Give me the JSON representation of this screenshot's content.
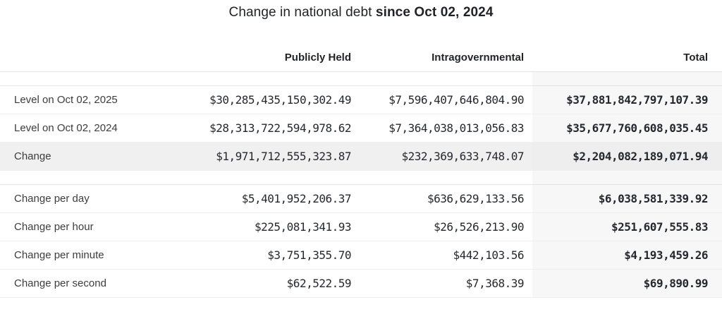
{
  "title": {
    "regular": "Change in national debt ",
    "bold": "since Oct 02, 2024"
  },
  "chart_data": {
    "type": "table",
    "title": "Change in national debt since Oct 02, 2024",
    "columns": [
      "Publicly Held",
      "Intragovernmental",
      "Total"
    ],
    "rows": [
      {
        "label": "Level on Oct 02, 2025",
        "publicly_held": "$30,285,435,150,302.49",
        "intragovernmental": "$7,596,407,646,804.90",
        "total": "$37,881,842,797,107.39"
      },
      {
        "label": "Level on Oct 02, 2024",
        "publicly_held": "$28,313,722,594,978.62",
        "intragovernmental": "$7,364,038,013,056.83",
        "total": "$35,677,760,608,035.45"
      },
      {
        "label": "Change",
        "publicly_held": "$1,971,712,555,323.87",
        "intragovernmental": "$232,369,633,748.07",
        "total": "$2,204,082,189,071.94"
      },
      {
        "label": "Change per day",
        "publicly_held": "$5,401,952,206.37",
        "intragovernmental": "$636,629,133.56",
        "total": "$6,038,581,339.92"
      },
      {
        "label": "Change per hour",
        "publicly_held": "$225,081,341.93",
        "intragovernmental": "$26,526,213.90",
        "total": "$251,607,555.83"
      },
      {
        "label": "Change per minute",
        "publicly_held": "$3,751,355.70",
        "intragovernmental": "$442,103.56",
        "total": "$4,193,459.26"
      },
      {
        "label": "Change per second",
        "publicly_held": "$62,522.59",
        "intragovernmental": "$7,368.39",
        "total": "$69,890.99"
      }
    ],
    "layout_hints": {
      "highlighted_row": "Change",
      "emphasized_column": "Total",
      "value_alignment": "right"
    }
  },
  "colors": {
    "total_column_bg": "#f7f7f7",
    "highlight_row_bg": "#f0f0f0",
    "border": "#e3e3e3",
    "row_border": "#efefef",
    "text": "#24292f"
  }
}
